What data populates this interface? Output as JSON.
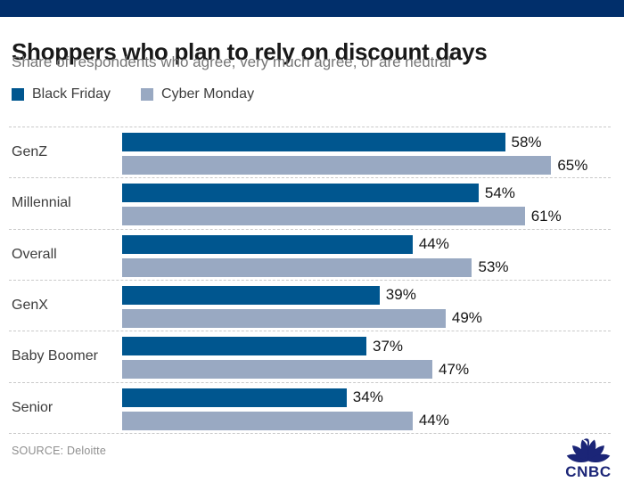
{
  "page": {
    "background": "#ffffff",
    "top_band_color": "#012f6b",
    "gridline_color": "#c9c9c9"
  },
  "header": {
    "title": "Shoppers who plan to rely on discount days",
    "subtitle": "Share of respondents who agree, very much agree, or are neutral"
  },
  "legend": {
    "items": [
      {
        "label": "Black Friday",
        "color": "#00568f"
      },
      {
        "label": "Cyber Monday",
        "color": "#99a9c2"
      }
    ]
  },
  "chart_data": {
    "type": "bar",
    "orientation": "horizontal",
    "title": "Shoppers who plan to rely on discount days",
    "subtitle": "Share of respondents who agree, very much agree, or are neutral",
    "categories": [
      "GenZ",
      "Millennial",
      "Overall",
      "GenX",
      "Baby Boomer",
      "Senior"
    ],
    "series": [
      {
        "name": "Black Friday",
        "color": "#00568f",
        "values": [
          58,
          54,
          44,
          39,
          37,
          34
        ]
      },
      {
        "name": "Cyber Monday",
        "color": "#99a9c2",
        "values": [
          65,
          61,
          53,
          49,
          47,
          44
        ]
      }
    ],
    "value_suffix": "%",
    "xlim": [
      0,
      74
    ],
    "grid": "dashed horizontal category separators",
    "legend_position": "top-left",
    "value_labels": "right of bar end"
  },
  "footer": {
    "source": "SOURCE: Deloitte",
    "logo_text": "CNBC",
    "logo_color": "#1b2577"
  }
}
